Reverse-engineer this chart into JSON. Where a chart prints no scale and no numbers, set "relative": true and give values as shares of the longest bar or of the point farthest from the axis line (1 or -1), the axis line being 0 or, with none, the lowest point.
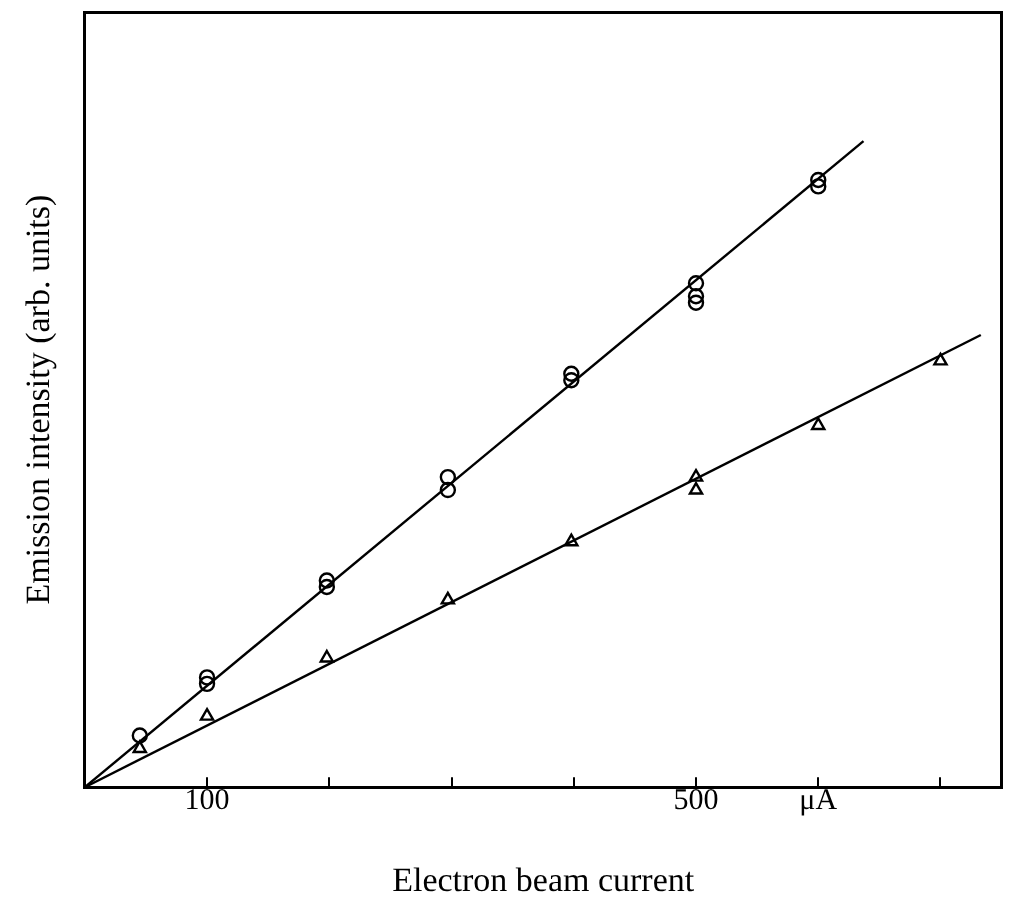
{
  "chart_data": {
    "type": "scatter",
    "xlabel": "Electron beam current",
    "ylabel": "Emission intensity (arb. units)",
    "relative": true,
    "legend": false,
    "grid": false,
    "xlim": [
      0,
      750
    ],
    "xticks": [
      100,
      {
        "value": 200,
        "label": null
      },
      {
        "value": 300,
        "label": null
      },
      {
        "value": 400,
        "label": null
      },
      500,
      {
        "value": 600,
        "label": "μA"
      },
      {
        "value": 700,
        "label": null
      }
    ],
    "series": [
      {
        "type": "scatter",
        "marker": "circle",
        "color": "#000000",
        "x": [
          45,
          100,
          100,
          198,
          198,
          297,
          297,
          398,
          398,
          500,
          500,
          500,
          600,
          600
        ],
        "values": [
          0.08,
          0.17,
          0.16,
          0.32,
          0.31,
          0.48,
          0.46,
          0.64,
          0.63,
          0.78,
          0.76,
          0.75,
          0.94,
          0.93
        ]
      },
      {
        "type": "scatter",
        "marker": "triangle",
        "color": "#000000",
        "x": [
          45,
          100,
          198,
          297,
          398,
          500,
          500,
          600,
          700
        ],
        "values": [
          0.06,
          0.11,
          0.2,
          0.29,
          0.38,
          0.48,
          0.46,
          0.56,
          0.66
        ]
      },
      {
        "type": "line",
        "marker": "none",
        "color": "#000000",
        "x": [
          0,
          637
        ],
        "values": [
          0,
          1
        ]
      },
      {
        "type": "line",
        "marker": "none",
        "color": "#000000",
        "x": [
          0,
          733
        ],
        "values": [
          0,
          0.7
        ]
      }
    ]
  }
}
